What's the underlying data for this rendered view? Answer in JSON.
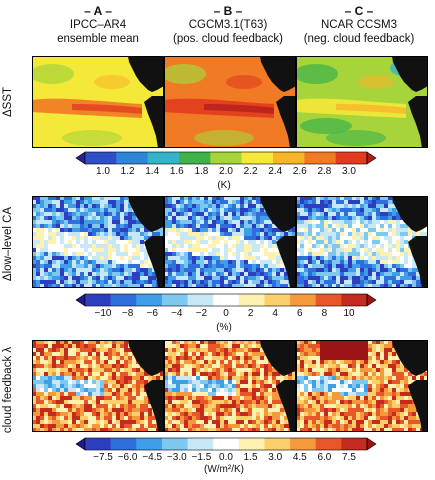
{
  "columns": [
    {
      "letter": "– A –",
      "line1": "IPCC–AR4",
      "line2": "ensemble mean"
    },
    {
      "letter": "– B –",
      "line1": "CGCM3.1(T63)",
      "line2": "(pos. cloud feedback)"
    },
    {
      "letter": "– C –",
      "line1": "NCAR CCSM3",
      "line2": "(neg. cloud feedback)"
    }
  ],
  "rows": [
    {
      "label": "ΔSST",
      "unit": "(K)",
      "ticks": [
        "1.0",
        "1.2",
        "1.4",
        "1.6",
        "1.8",
        "2.0",
        "2.2",
        "2.4",
        "2.6",
        "2.8",
        "3.0"
      ],
      "colors": [
        "#2a1f8f",
        "#2f4fc6",
        "#2e86d8",
        "#35b3c9",
        "#3fb24b",
        "#a6d43a",
        "#f4e838",
        "#f7b52c",
        "#f17a25",
        "#e23b1f",
        "#b41b1b"
      ]
    },
    {
      "label": "Δlow–level CA",
      "unit": "(%)",
      "ticks": [
        "−10",
        "−8",
        "−6",
        "−4",
        "−2",
        "0",
        "2",
        "4",
        "6",
        "8",
        "10"
      ],
      "colors": [
        "#231a8a",
        "#2d3fc0",
        "#2f6fdc",
        "#3f9ee8",
        "#7cc8f0",
        "#c8e8f7",
        "#ffffff",
        "#fff1b0",
        "#fbcf6a",
        "#f59a3c",
        "#e8572a",
        "#c52a1e",
        "#9b1313"
      ]
    },
    {
      "label": "cloud feedback λ",
      "unit": "(W/m²/K)",
      "ticks": [
        "−7.5",
        "−6.0",
        "−4.5",
        "−3.0",
        "−1.5",
        "0.0",
        "1.5",
        "3.0",
        "4.5",
        "6.0",
        "7.5"
      ],
      "colors": [
        "#231a8a",
        "#2d3fc0",
        "#2f6fdc",
        "#3f9ee8",
        "#7cc8f0",
        "#c8e8f7",
        "#ffffff",
        "#fff1b0",
        "#fbcf6a",
        "#f59a3c",
        "#e8572a",
        "#c52a1e",
        "#9b1313"
      ]
    }
  ],
  "palette": {
    "land": "#111111",
    "sst_base": "#f2d63a",
    "ca_base": "#6aa6dd"
  }
}
